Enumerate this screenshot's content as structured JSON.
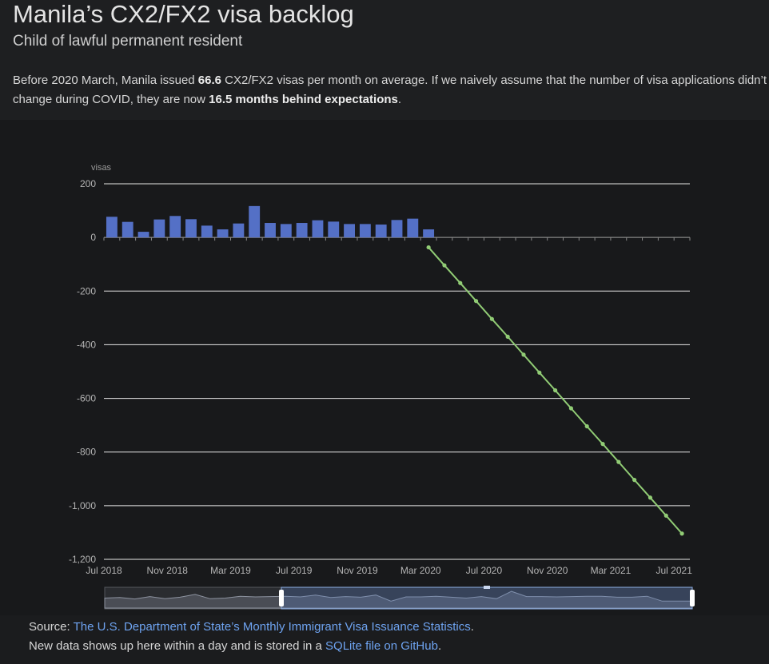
{
  "header": {
    "title": "Manila’s CX2/FX2 visa backlog",
    "subtitle": "Child of lawful permanent resident"
  },
  "summary": {
    "part1": "Before 2020 March, Manila issued ",
    "avg": "66.6",
    "part2": " CX2/FX2 visas per month on average. If we naively assume that the number of visa applications didn’t change during COVID, they are now ",
    "behind": "16.5 months behind expectations",
    "part3": "."
  },
  "source": {
    "prefix": "Source: ",
    "link_text": "The U.S. Department of State’s Monthly Immigrant Visa Issuance Statistics",
    "suffix": ".",
    "line2_prefix": "New data shows up here within a day and is stored in a ",
    "line2_link": "SQLite file on GitHub",
    "line2_suffix": "."
  },
  "chart_data": {
    "type": "bar",
    "ylabel": "visas",
    "ylim": [
      -1200,
      200
    ],
    "yticks": [
      200,
      0,
      -200,
      -400,
      -600,
      -800,
      -1000,
      -1200
    ],
    "ytick_labels": [
      "200",
      "0",
      "-200",
      "-400",
      "-600",
      "-800",
      "-1,000",
      "-1,200"
    ],
    "xticks": [
      "Jul 2018",
      "Nov 2018",
      "Mar 2019",
      "Jul 2019",
      "Nov 2019",
      "Mar 2020",
      "Jul 2020",
      "Nov 2020",
      "Mar 2021",
      "Jul 2021"
    ],
    "grid": true,
    "colors": {
      "bar": "#5470c6",
      "line": "#91cc75"
    },
    "series": [
      {
        "type": "bar",
        "categories": [
          "2018-07",
          "2018-08",
          "2018-09",
          "2018-10",
          "2018-11",
          "2018-12",
          "2019-01",
          "2019-02",
          "2019-03",
          "2019-04",
          "2019-05",
          "2019-06",
          "2019-07",
          "2019-08",
          "2019-09",
          "2019-10",
          "2019-11",
          "2019-12",
          "2020-01",
          "2020-02",
          "2020-03"
        ],
        "values": [
          77,
          58,
          21,
          67,
          80,
          68,
          44,
          30,
          52,
          117,
          54,
          50,
          54,
          64,
          59,
          50,
          50,
          48,
          65,
          70,
          30
        ]
      },
      {
        "type": "line",
        "categories": [
          "2020-03",
          "2020-04",
          "2020-05",
          "2020-06",
          "2020-07",
          "2020-08",
          "2020-09",
          "2020-10",
          "2020-11",
          "2020-12",
          "2021-01",
          "2021-02",
          "2021-03",
          "2021-04",
          "2021-05",
          "2021-06",
          "2021-07"
        ],
        "values": [
          -37,
          -104,
          -170,
          -237,
          -304,
          -370,
          -437,
          -504,
          -570,
          -637,
          -704,
          -770,
          -837,
          -904,
          -970,
          -1037,
          -1104
        ]
      }
    ],
    "overview_series": [
      30,
      32,
      27,
      35,
      28,
      33,
      42,
      28,
      30,
      36,
      34,
      35,
      36,
      34,
      40,
      32,
      35,
      33,
      40,
      20,
      34,
      34,
      36,
      33,
      30,
      35,
      28,
      52,
      35,
      35,
      34,
      35,
      36,
      36,
      33,
      33,
      36,
      20,
      20,
      20
    ]
  }
}
